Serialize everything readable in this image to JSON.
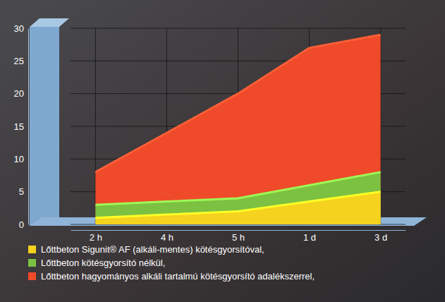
{
  "chart_data": {
    "type": "area",
    "categories": [
      "2 h",
      "4 h",
      "5 h",
      "1 d",
      "3 d"
    ],
    "series": [
      {
        "name": "Lőttbeton hagyományos alkáli tartalmú kötésgyorsító adalékszerrel,",
        "color": "#ef4a2a",
        "values": [
          8,
          14,
          20,
          27,
          29
        ]
      },
      {
        "name": "Lőttbeton kötésgyorsító nélkül,",
        "color": "#7cc142",
        "values": [
          3,
          3.5,
          4,
          6,
          8
        ]
      },
      {
        "name": "Lőttbeton Sigunit® AF (alkáli-mentes) kötésgyorsítóval,",
        "color": "#f5d21e",
        "values": [
          1,
          1.5,
          2,
          3.5,
          5
        ]
      }
    ],
    "ylim": [
      0,
      30
    ],
    "yticks": [
      0,
      5,
      10,
      15,
      20,
      25,
      30
    ],
    "grid": true,
    "legend": "bottom"
  }
}
